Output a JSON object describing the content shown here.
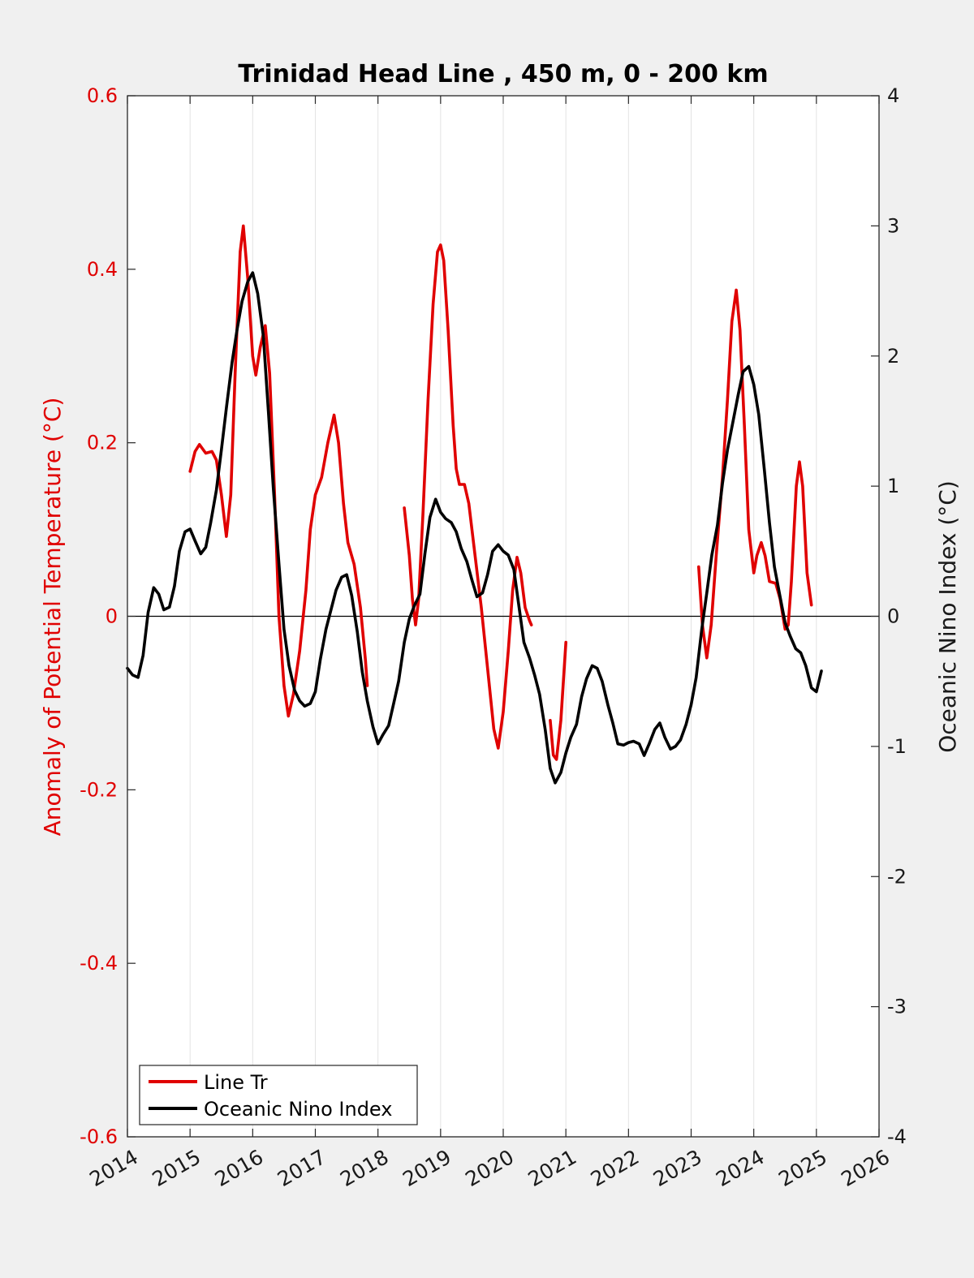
{
  "chart_data": {
    "type": "line",
    "title": "Trinidad Head Line , 450 m, 0 - 200 km",
    "ylabel_left": "Anomaly of Potential Temperature (°C)",
    "ylabel_right": "Oceanic Nino Index (°C)",
    "xlim": [
      2014,
      2026
    ],
    "ylim_left": [
      -0.6,
      0.6
    ],
    "ylim_right": [
      -4,
      4
    ],
    "x_ticks": [
      "2014",
      "2015",
      "2016",
      "2017",
      "2018",
      "2019",
      "2020",
      "2021",
      "2022",
      "2023",
      "2024",
      "2025",
      "2026"
    ],
    "y_left_ticks": [
      "-0.6",
      "-0.4",
      "-0.2",
      "0",
      "0.2",
      "0.4",
      "0.6"
    ],
    "y_right_ticks": [
      "-4",
      "-3",
      "-2",
      "-1",
      "0",
      "1",
      "2",
      "3",
      "4"
    ],
    "grid": "vertical",
    "legend_position": "bottom-left",
    "series": [
      {
        "name": "Line Tr",
        "color": "#e00000",
        "axis": "left",
        "segments": [
          [
            [
              2015.0,
              0.167
            ],
            [
              2015.08,
              0.19
            ],
            [
              2015.15,
              0.198
            ],
            [
              2015.25,
              0.188
            ],
            [
              2015.35,
              0.19
            ],
            [
              2015.42,
              0.18
            ],
            [
              2015.5,
              0.14
            ],
            [
              2015.58,
              0.092
            ],
            [
              2015.65,
              0.14
            ],
            [
              2015.72,
              0.28
            ],
            [
              2015.8,
              0.42
            ],
            [
              2015.85,
              0.45
            ],
            [
              2015.92,
              0.39
            ],
            [
              2016.0,
              0.3
            ],
            [
              2016.05,
              0.278
            ],
            [
              2016.12,
              0.31
            ],
            [
              2016.2,
              0.335
            ],
            [
              2016.27,
              0.28
            ],
            [
              2016.35,
              0.14
            ],
            [
              2016.42,
              0.0
            ],
            [
              2016.5,
              -0.08
            ],
            [
              2016.57,
              -0.115
            ],
            [
              2016.65,
              -0.09
            ],
            [
              2016.75,
              -0.04
            ],
            [
              2016.85,
              0.03
            ],
            [
              2016.92,
              0.1
            ],
            [
              2017.0,
              0.14
            ],
            [
              2017.1,
              0.16
            ],
            [
              2017.2,
              0.2
            ],
            [
              2017.3,
              0.232
            ],
            [
              2017.37,
              0.2
            ],
            [
              2017.45,
              0.13
            ],
            [
              2017.52,
              0.085
            ],
            [
              2017.62,
              0.06
            ],
            [
              2017.72,
              0.01
            ],
            [
              2017.8,
              -0.05
            ],
            [
              2017.83,
              -0.08
            ]
          ],
          [
            [
              2018.42,
              0.125
            ],
            [
              2018.5,
              0.07
            ],
            [
              2018.55,
              0.02
            ],
            [
              2018.6,
              -0.01
            ],
            [
              2018.65,
              0.02
            ],
            [
              2018.72,
              0.12
            ],
            [
              2018.8,
              0.25
            ],
            [
              2018.88,
              0.36
            ],
            [
              2018.95,
              0.42
            ],
            [
              2019.0,
              0.428
            ],
            [
              2019.05,
              0.41
            ],
            [
              2019.12,
              0.33
            ],
            [
              2019.2,
              0.22
            ],
            [
              2019.25,
              0.17
            ],
            [
              2019.3,
              0.152
            ],
            [
              2019.38,
              0.152
            ],
            [
              2019.45,
              0.13
            ],
            [
              2019.55,
              0.07
            ],
            [
              2019.65,
              0.01
            ],
            [
              2019.75,
              -0.06
            ],
            [
              2019.85,
              -0.13
            ],
            [
              2019.92,
              -0.152
            ],
            [
              2020.0,
              -0.11
            ],
            [
              2020.08,
              -0.04
            ],
            [
              2020.15,
              0.03
            ],
            [
              2020.22,
              0.068
            ],
            [
              2020.28,
              0.05
            ],
            [
              2020.35,
              0.01
            ],
            [
              2020.42,
              -0.005
            ],
            [
              2020.45,
              -0.01
            ]
          ],
          [
            [
              2020.75,
              -0.12
            ],
            [
              2020.8,
              -0.16
            ],
            [
              2020.85,
              -0.165
            ],
            [
              2020.92,
              -0.12
            ],
            [
              2021.0,
              -0.03
            ]
          ]
        ]
      },
      {
        "name": "Line Tr",
        "color": "#e00000",
        "axis": "left",
        "segments": [
          [
            [
              2023.12,
              0.057
            ],
            [
              2023.18,
              -0.01
            ],
            [
              2023.25,
              -0.048
            ],
            [
              2023.32,
              -0.01
            ],
            [
              2023.4,
              0.07
            ],
            [
              2023.5,
              0.16
            ],
            [
              2023.58,
              0.25
            ],
            [
              2023.65,
              0.34
            ],
            [
              2023.72,
              0.376
            ],
            [
              2023.78,
              0.33
            ],
            [
              2023.85,
              0.22
            ],
            [
              2023.92,
              0.1
            ],
            [
              2024.0,
              0.05
            ],
            [
              2024.05,
              0.07
            ],
            [
              2024.12,
              0.085
            ],
            [
              2024.18,
              0.07
            ],
            [
              2024.25,
              0.04
            ],
            [
              2024.35,
              0.038
            ],
            [
              2024.42,
              0.02
            ],
            [
              2024.5,
              -0.015
            ],
            [
              2024.55,
              -0.01
            ],
            [
              2024.6,
              0.04
            ],
            [
              2024.68,
              0.15
            ],
            [
              2024.73,
              0.178
            ],
            [
              2024.78,
              0.15
            ],
            [
              2024.85,
              0.05
            ],
            [
              2024.92,
              0.013
            ]
          ]
        ]
      },
      {
        "name": "Oceanic Nino Index",
        "color": "#000000",
        "axis": "right",
        "points": [
          [
            2014.0,
            -0.4
          ],
          [
            2014.08,
            -0.45
          ],
          [
            2014.17,
            -0.47
          ],
          [
            2014.25,
            -0.3
          ],
          [
            2014.33,
            0.03
          ],
          [
            2014.42,
            0.22
          ],
          [
            2014.5,
            0.17
          ],
          [
            2014.58,
            0.05
          ],
          [
            2014.67,
            0.07
          ],
          [
            2014.75,
            0.23
          ],
          [
            2014.83,
            0.5
          ],
          [
            2014.92,
            0.65
          ],
          [
            2015.0,
            0.67
          ],
          [
            2015.08,
            0.58
          ],
          [
            2015.17,
            0.48
          ],
          [
            2015.25,
            0.53
          ],
          [
            2015.33,
            0.72
          ],
          [
            2015.42,
            0.97
          ],
          [
            2015.5,
            1.28
          ],
          [
            2015.58,
            1.6
          ],
          [
            2015.67,
            1.95
          ],
          [
            2015.75,
            2.2
          ],
          [
            2015.83,
            2.42
          ],
          [
            2015.92,
            2.57
          ],
          [
            2016.0,
            2.64
          ],
          [
            2016.08,
            2.48
          ],
          [
            2016.17,
            2.15
          ],
          [
            2016.25,
            1.58
          ],
          [
            2016.33,
            0.98
          ],
          [
            2016.42,
            0.4
          ],
          [
            2016.5,
            -0.1
          ],
          [
            2016.58,
            -0.38
          ],
          [
            2016.67,
            -0.57
          ],
          [
            2016.75,
            -0.65
          ],
          [
            2016.83,
            -0.69
          ],
          [
            2016.92,
            -0.67
          ],
          [
            2017.0,
            -0.58
          ],
          [
            2017.08,
            -0.33
          ],
          [
            2017.17,
            -0.1
          ],
          [
            2017.25,
            0.05
          ],
          [
            2017.33,
            0.2
          ],
          [
            2017.42,
            0.3
          ],
          [
            2017.5,
            0.32
          ],
          [
            2017.58,
            0.16
          ],
          [
            2017.67,
            -0.12
          ],
          [
            2017.75,
            -0.43
          ],
          [
            2017.83,
            -0.65
          ],
          [
            2017.92,
            -0.85
          ],
          [
            2018.0,
            -0.98
          ],
          [
            2018.08,
            -0.91
          ],
          [
            2018.17,
            -0.84
          ],
          [
            2018.25,
            -0.67
          ],
          [
            2018.33,
            -0.5
          ],
          [
            2018.42,
            -0.2
          ],
          [
            2018.5,
            -0.02
          ],
          [
            2018.58,
            0.08
          ],
          [
            2018.67,
            0.17
          ],
          [
            2018.75,
            0.48
          ],
          [
            2018.83,
            0.76
          ],
          [
            2018.92,
            0.9
          ],
          [
            2019.0,
            0.8
          ],
          [
            2019.08,
            0.75
          ],
          [
            2019.17,
            0.72
          ],
          [
            2019.25,
            0.65
          ],
          [
            2019.33,
            0.52
          ],
          [
            2019.42,
            0.42
          ],
          [
            2019.5,
            0.28
          ],
          [
            2019.58,
            0.15
          ],
          [
            2019.67,
            0.18
          ],
          [
            2019.75,
            0.32
          ],
          [
            2019.83,
            0.5
          ],
          [
            2019.92,
            0.55
          ],
          [
            2020.0,
            0.5
          ],
          [
            2020.08,
            0.47
          ],
          [
            2020.17,
            0.36
          ],
          [
            2020.25,
            0.08
          ],
          [
            2020.33,
            -0.2
          ],
          [
            2020.42,
            -0.32
          ],
          [
            2020.5,
            -0.45
          ],
          [
            2020.58,
            -0.6
          ],
          [
            2020.67,
            -0.87
          ],
          [
            2020.75,
            -1.17
          ],
          [
            2020.83,
            -1.28
          ],
          [
            2020.92,
            -1.2
          ],
          [
            2021.0,
            -1.05
          ],
          [
            2021.08,
            -0.93
          ],
          [
            2021.17,
            -0.83
          ],
          [
            2021.25,
            -0.62
          ],
          [
            2021.33,
            -0.48
          ],
          [
            2021.42,
            -0.38
          ],
          [
            2021.5,
            -0.4
          ],
          [
            2021.58,
            -0.5
          ],
          [
            2021.67,
            -0.68
          ],
          [
            2021.75,
            -0.82
          ],
          [
            2021.83,
            -0.98
          ],
          [
            2021.92,
            -0.99
          ],
          [
            2022.0,
            -0.97
          ],
          [
            2022.08,
            -0.96
          ],
          [
            2022.17,
            -0.98
          ],
          [
            2022.25,
            -1.07
          ],
          [
            2022.33,
            -0.98
          ],
          [
            2022.42,
            -0.87
          ],
          [
            2022.5,
            -0.82
          ],
          [
            2022.58,
            -0.93
          ],
          [
            2022.67,
            -1.02
          ],
          [
            2022.75,
            -1.0
          ],
          [
            2022.83,
            -0.95
          ],
          [
            2022.92,
            -0.83
          ],
          [
            2023.0,
            -0.68
          ],
          [
            2023.08,
            -0.47
          ],
          [
            2023.17,
            -0.1
          ],
          [
            2023.25,
            0.18
          ],
          [
            2023.33,
            0.47
          ],
          [
            2023.42,
            0.7
          ],
          [
            2023.5,
            1.02
          ],
          [
            2023.58,
            1.28
          ],
          [
            2023.67,
            1.5
          ],
          [
            2023.75,
            1.7
          ],
          [
            2023.83,
            1.88
          ],
          [
            2023.92,
            1.92
          ],
          [
            2024.0,
            1.78
          ],
          [
            2024.08,
            1.55
          ],
          [
            2024.17,
            1.12
          ],
          [
            2024.25,
            0.72
          ],
          [
            2024.33,
            0.38
          ],
          [
            2024.42,
            0.15
          ],
          [
            2024.5,
            -0.05
          ],
          [
            2024.58,
            -0.15
          ],
          [
            2024.67,
            -0.25
          ],
          [
            2024.75,
            -0.28
          ],
          [
            2024.83,
            -0.38
          ],
          [
            2024.92,
            -0.55
          ],
          [
            2025.0,
            -0.58
          ],
          [
            2025.08,
            -0.42
          ]
        ]
      }
    ]
  },
  "legend": {
    "entries": [
      {
        "label": "Line Tr",
        "color": "#e00000"
      },
      {
        "label": "Oceanic Nino Index",
        "color": "#000000"
      }
    ]
  }
}
